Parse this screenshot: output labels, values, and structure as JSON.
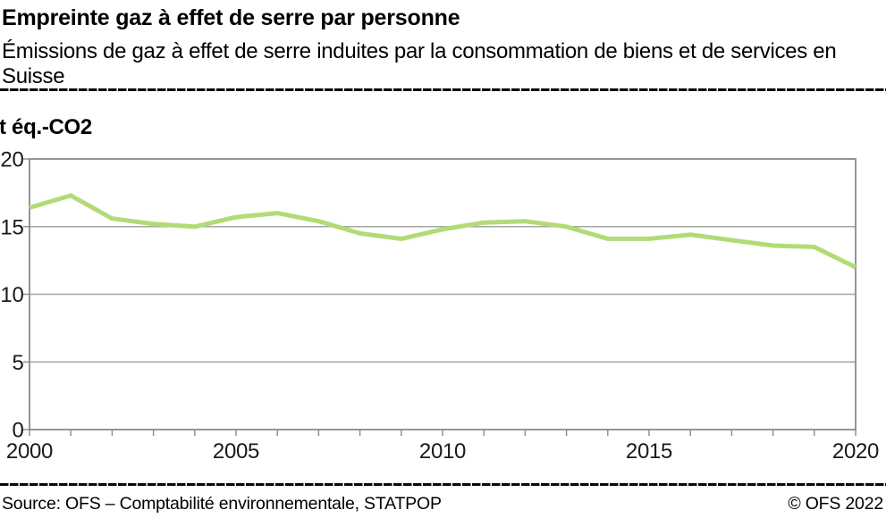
{
  "header": {
    "title": "Empreinte gaz à effet de serre par personne",
    "subtitle": "Émissions de gaz à effet de serre induites par la consommation de biens et de services en Suisse"
  },
  "chart_data": {
    "type": "line",
    "title": "Empreinte gaz à effet de serre par personne",
    "unit_label": "t éq.-CO2",
    "x": [
      2000,
      2001,
      2002,
      2003,
      2004,
      2005,
      2006,
      2007,
      2008,
      2009,
      2010,
      2011,
      2012,
      2013,
      2014,
      2015,
      2016,
      2017,
      2018,
      2019,
      2020
    ],
    "values": [
      16.4,
      17.3,
      15.6,
      15.2,
      15.0,
      15.7,
      16.0,
      15.4,
      14.5,
      14.1,
      14.8,
      15.3,
      15.4,
      15.0,
      14.1,
      14.1,
      14.4,
      14.0,
      13.6,
      13.5,
      12.0
    ],
    "xlim": [
      2000,
      2020
    ],
    "ylim": [
      0,
      20
    ],
    "yticks": [
      0,
      5,
      10,
      15,
      20
    ],
    "xticks_labeled": [
      2000,
      2005,
      2010,
      2015,
      2020
    ],
    "minor_xtick_step": 1,
    "grid": "horizontal",
    "legend": "none",
    "line_color": "#b2db77",
    "grid_color": "#a6a6a6",
    "axis_color": "#8a8a8a"
  },
  "footer": {
    "source": "Source: OFS – Comptabilité environnementale, STATPOP",
    "copyright": "© OFS 2022"
  }
}
